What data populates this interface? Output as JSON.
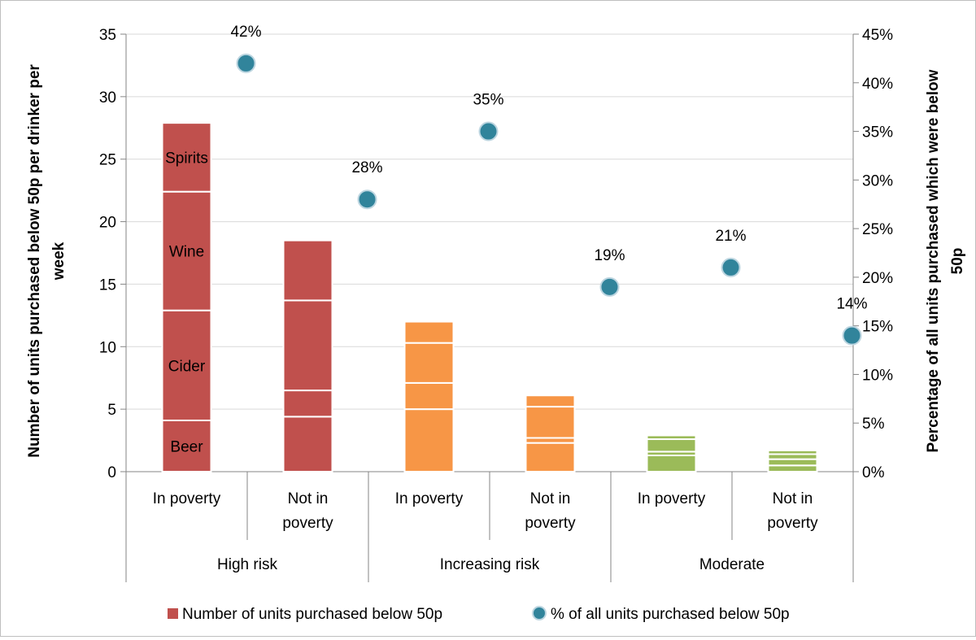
{
  "chart_data": {
    "type": "bar",
    "groups": [
      {
        "label": "High risk",
        "categories": [
          "In poverty",
          "Not in poverty"
        ]
      },
      {
        "label": "Increasing risk",
        "categories": [
          "In poverty",
          "Not in poverty"
        ]
      },
      {
        "label": "Moderate",
        "categories": [
          "In poverty",
          "Not in poverty"
        ]
      }
    ],
    "categories": [
      "In poverty",
      "Not in poverty",
      "In poverty",
      "Not in poverty",
      "In poverty",
      "Not in poverty"
    ],
    "stack_segments": [
      "Beer",
      "Cider",
      "Wine",
      "Spirits"
    ],
    "stacked_values": [
      [
        4.1,
        8.8,
        9.5,
        5.5
      ],
      [
        4.4,
        2.1,
        7.2,
        4.8
      ],
      [
        5.0,
        2.1,
        3.2,
        1.7
      ],
      [
        2.3,
        0.4,
        2.5,
        0.9
      ],
      [
        1.3,
        0.3,
        1.0,
        0.3
      ],
      [
        0.5,
        0.5,
        0.4,
        0.3
      ]
    ],
    "totals": [
      27.9,
      18.5,
      12.0,
      6.1,
      2.9,
      1.7
    ],
    "group_colors": [
      "#c0504d",
      "#c0504d",
      "#f79646",
      "#f79646",
      "#9bbb59",
      "#9bbb59"
    ],
    "series": [
      {
        "name": "Number of units purchased below 50p",
        "axis": "left",
        "values": [
          27.9,
          18.5,
          12.0,
          6.1,
          2.9,
          1.7
        ]
      },
      {
        "name": "% of all units purchased below 50p",
        "axis": "right",
        "values": [
          42,
          28,
          35,
          19,
          21,
          14
        ],
        "labels": [
          "42%",
          "28%",
          "35%",
          "19%",
          "21%",
          "14%"
        ]
      }
    ],
    "ylabel": "Number of units purchased below 50p per drinker per week",
    "y2label": "Percentage of all units purchased which were below 50p",
    "ylim": [
      0,
      35
    ],
    "yticks": [
      "0",
      "5",
      "10",
      "15",
      "20",
      "25",
      "30",
      "35"
    ],
    "y2lim": [
      0,
      45
    ],
    "y2ticks": [
      "0%",
      "5%",
      "10%",
      "15%",
      "20%",
      "25%",
      "30%",
      "35%",
      "40%",
      "45%"
    ],
    "grid": true,
    "legend": "bottom",
    "colors": {
      "marker": "#31849b",
      "grid": "#d9d9d9",
      "axis": "#868686"
    }
  }
}
